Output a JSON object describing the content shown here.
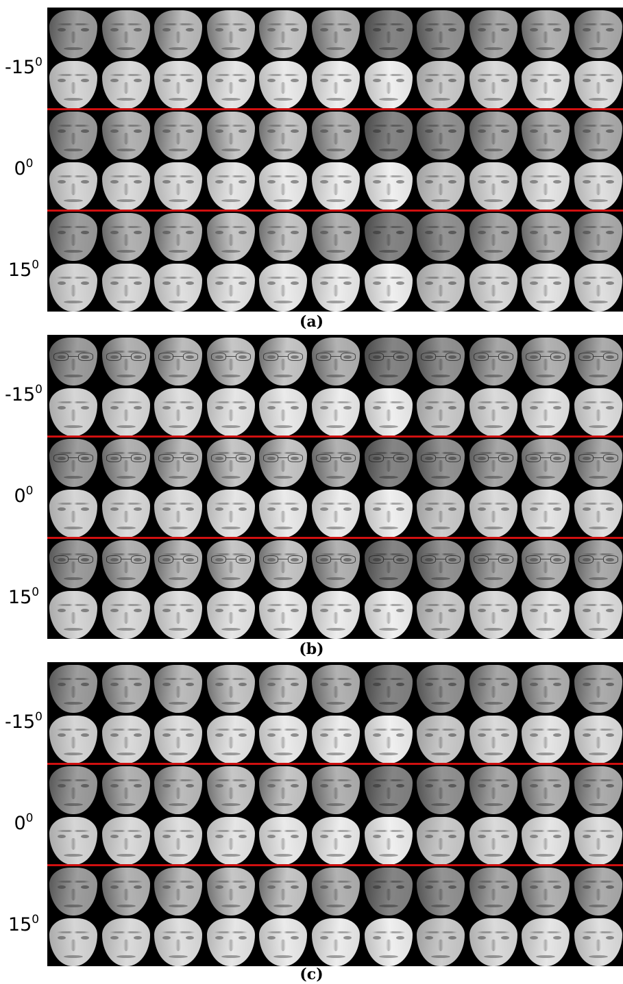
{
  "colors": {
    "divider": "#d01010",
    "background": "#000000"
  },
  "panels": [
    {
      "caption": "(a)",
      "glasses": false,
      "labels": [
        {
          "base": "-15",
          "sup": "0"
        },
        {
          "base": "0",
          "sup": "0"
        },
        {
          "base": "15",
          "sup": "0"
        }
      ]
    },
    {
      "caption": "(b)",
      "glasses": true,
      "labels": [
        {
          "base": "-15",
          "sup": "0"
        },
        {
          "base": "0",
          "sup": "0"
        },
        {
          "base": "15",
          "sup": "0"
        }
      ]
    },
    {
      "caption": "(c)",
      "glasses": false,
      "labels": [
        {
          "base": "-15",
          "sup": "0"
        },
        {
          "base": "0",
          "sup": "0"
        },
        {
          "base": "15",
          "sup": "0"
        }
      ]
    }
  ]
}
